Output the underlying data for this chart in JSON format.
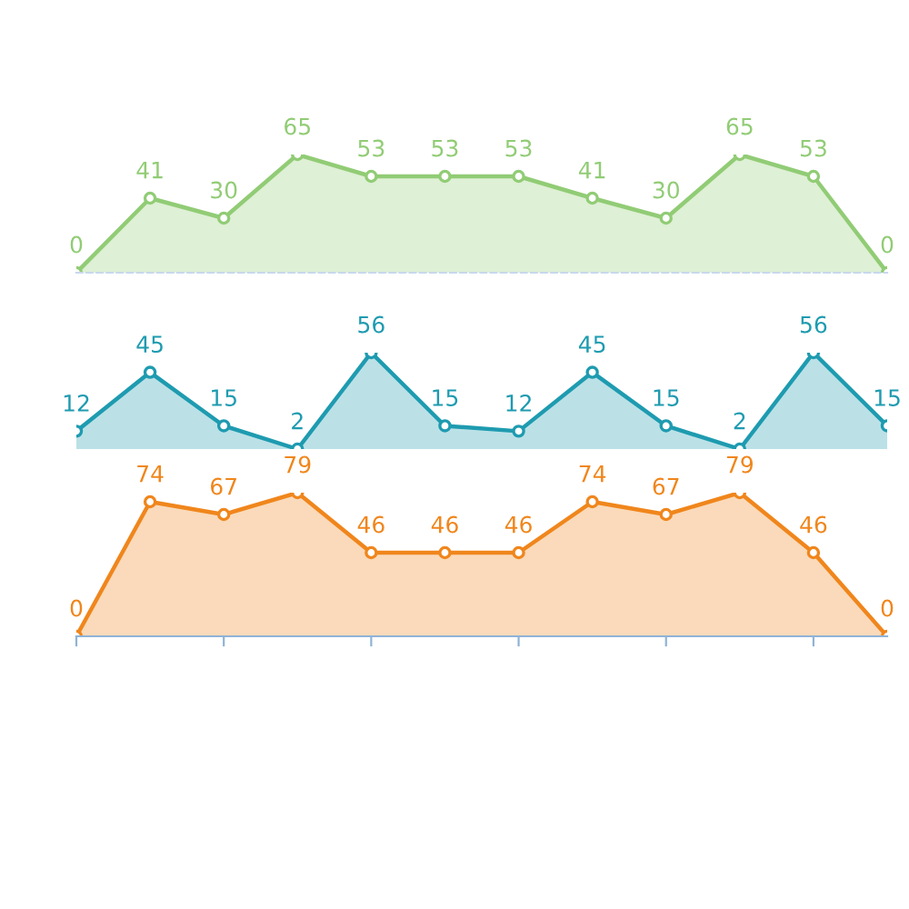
{
  "chart_data": [
    {
      "type": "area",
      "categories": [
        null,
        null,
        null,
        null,
        null,
        null,
        null,
        null,
        null,
        null,
        null,
        null
      ],
      "values": [
        0,
        41,
        30,
        65,
        53,
        53,
        53,
        41,
        30,
        65,
        53,
        0
      ],
      "color": "#91cc75",
      "marker": "circle",
      "data_labels": true
    },
    {
      "type": "area",
      "categories": [
        null,
        null,
        null,
        null,
        null,
        null,
        null,
        null,
        null,
        null,
        null,
        null
      ],
      "values": [
        12,
        45,
        15,
        2,
        56,
        15,
        12,
        45,
        15,
        2,
        56,
        15
      ],
      "color": "#1e9bb0",
      "marker": "circle",
      "data_labels": true
    },
    {
      "type": "area",
      "categories": [
        null,
        null,
        null,
        null,
        null,
        null,
        null,
        null,
        null,
        null,
        null,
        null
      ],
      "values": [
        0,
        74,
        67,
        79,
        46,
        46,
        46,
        74,
        67,
        79,
        46,
        0
      ],
      "color": "#f0861c",
      "marker": "circle",
      "data_labels": true
    }
  ]
}
